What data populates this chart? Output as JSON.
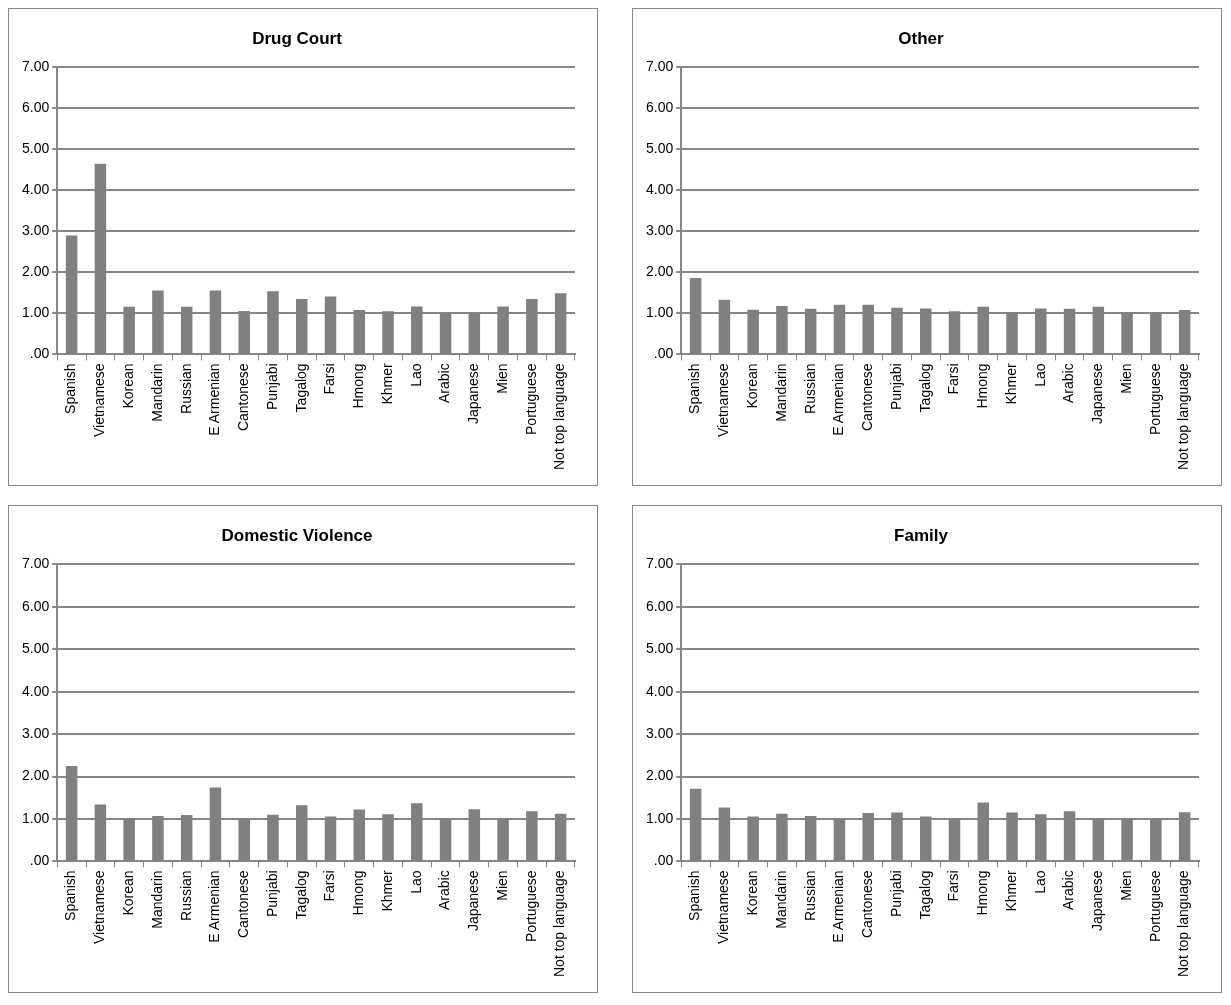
{
  "chart_data": [
    {
      "type": "bar",
      "title": "Drug Court",
      "categories": [
        "Spanish",
        "Vietnamese",
        "Korean",
        "Mandarin",
        "Russian",
        "E Armenian",
        "Cantonese",
        "Punjabi",
        "Tagalog",
        "Farsi",
        "Hmong",
        "Khmer",
        "Lao",
        "Arabic",
        "Japanese",
        "Mien",
        "Portuguese",
        "Not top language"
      ],
      "color": "#808080",
      "values": [
        2.9,
        4.65,
        1.16,
        1.56,
        1.16,
        1.56,
        1.06,
        1.54,
        1.35,
        1.41,
        1.08,
        1.05,
        1.17,
        1.0,
        1.0,
        1.17,
        1.35,
        1.49
      ],
      "ylim": [
        0,
        7
      ],
      "yticks": [
        {
          "value": 0,
          "label": ".00"
        },
        {
          "value": 1,
          "label": "1.00"
        },
        {
          "value": 2,
          "label": "2.00"
        },
        {
          "value": 3,
          "label": "3.00"
        },
        {
          "value": 4,
          "label": "4.00"
        },
        {
          "value": 5,
          "label": "5.00"
        },
        {
          "value": 6,
          "label": "6.00"
        },
        {
          "value": 7,
          "label": "7.00"
        }
      ],
      "grid": "y",
      "legend": false
    },
    {
      "type": "bar",
      "title": "Other",
      "categories": [
        "Spanish",
        "Vietnamese",
        "Korean",
        "Mandarin",
        "Russian",
        "E Armenian",
        "Cantonese",
        "Punjabi",
        "Tagalog",
        "Farsi",
        "Hmong",
        "Khmer",
        "Lao",
        "Arabic",
        "Japanese",
        "Mien",
        "Portuguese",
        "Not top language"
      ],
      "color": "#808080",
      "values": [
        1.86,
        1.33,
        1.09,
        1.18,
        1.11,
        1.21,
        1.21,
        1.14,
        1.12,
        1.05,
        1.16,
        1.02,
        1.12,
        1.11,
        1.16,
        1.02,
        1.02,
        1.08
      ],
      "ylim": [
        0,
        7
      ],
      "yticks": [
        {
          "value": 0,
          "label": ".00"
        },
        {
          "value": 1,
          "label": "1.00"
        },
        {
          "value": 2,
          "label": "2.00"
        },
        {
          "value": 3,
          "label": "3.00"
        },
        {
          "value": 4,
          "label": "4.00"
        },
        {
          "value": 5,
          "label": "5.00"
        },
        {
          "value": 6,
          "label": "6.00"
        },
        {
          "value": 7,
          "label": "7.00"
        }
      ],
      "grid": "y",
      "legend": false
    },
    {
      "type": "bar",
      "title": "Domestic Violence",
      "categories": [
        "Spanish",
        "Vietnamese",
        "Korean",
        "Mandarin",
        "Russian",
        "E Armenian",
        "Cantonese",
        "Punjabi",
        "Tagalog",
        "Farsi",
        "Hmong",
        "Khmer",
        "Lao",
        "Arabic",
        "Japanese",
        "Mien",
        "Portuguese",
        "Not top language"
      ],
      "color": "#808080",
      "values": [
        2.25,
        1.34,
        1.02,
        1.07,
        1.09,
        1.74,
        1.01,
        1.1,
        1.32,
        1.06,
        1.22,
        1.11,
        1.37,
        1.01,
        1.23,
        1.01,
        1.18,
        1.12
      ],
      "ylim": [
        0,
        7
      ],
      "yticks": [
        {
          "value": 0,
          "label": ".00"
        },
        {
          "value": 1,
          "label": "1.00"
        },
        {
          "value": 2,
          "label": "2.00"
        },
        {
          "value": 3,
          "label": "3.00"
        },
        {
          "value": 4,
          "label": "4.00"
        },
        {
          "value": 5,
          "label": "5.00"
        },
        {
          "value": 6,
          "label": "6.00"
        },
        {
          "value": 7,
          "label": "7.00"
        }
      ],
      "grid": "y",
      "legend": false
    },
    {
      "type": "bar",
      "title": "Family",
      "categories": [
        "Spanish",
        "Vietnamese",
        "Korean",
        "Mandarin",
        "Russian",
        "E Armenian",
        "Cantonese",
        "Punjabi",
        "Tagalog",
        "Farsi",
        "Hmong",
        "Khmer",
        "Lao",
        "Arabic",
        "Japanese",
        "Mien",
        "Portuguese",
        "Not top language"
      ],
      "color": "#808080",
      "values": [
        1.71,
        1.27,
        1.06,
        1.12,
        1.07,
        1.01,
        1.14,
        1.15,
        1.06,
        1.01,
        1.39,
        1.15,
        1.11,
        1.18,
        1.01,
        1.01,
        1.01,
        1.16
      ],
      "ylim": [
        0,
        7
      ],
      "yticks": [
        {
          "value": 0,
          "label": ".00"
        },
        {
          "value": 1,
          "label": "1.00"
        },
        {
          "value": 2,
          "label": "2.00"
        },
        {
          "value": 3,
          "label": "3.00"
        },
        {
          "value": 4,
          "label": "4.00"
        },
        {
          "value": 5,
          "label": "5.00"
        },
        {
          "value": 6,
          "label": "6.00"
        },
        {
          "value": 7,
          "label": "7.00"
        }
      ],
      "grid": "y",
      "legend": false
    }
  ]
}
